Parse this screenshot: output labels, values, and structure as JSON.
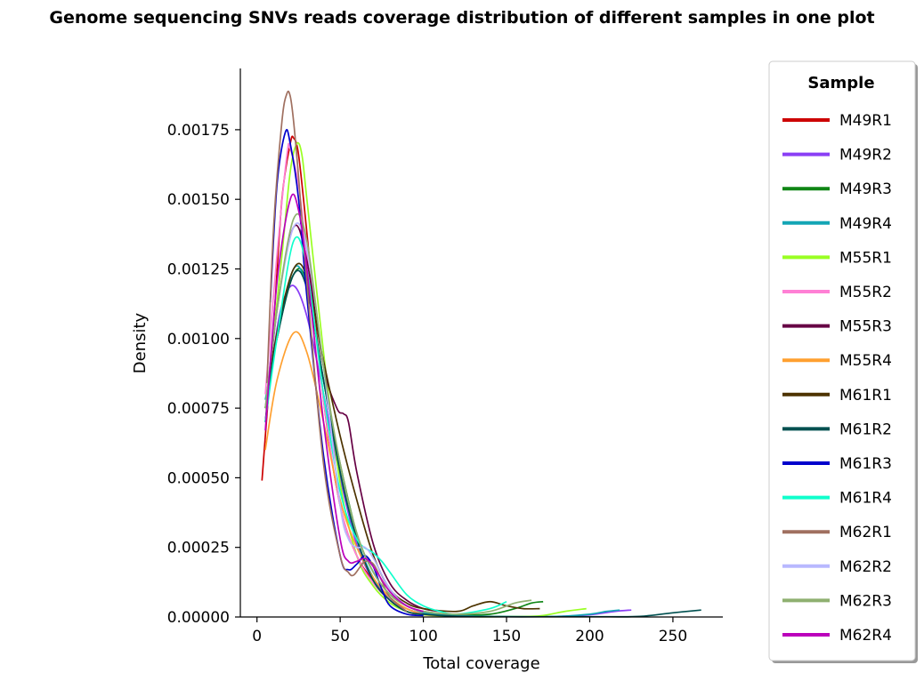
{
  "chart_data": {
    "type": "line",
    "title": "Genome sequencing SNVs reads coverage distribution of different samples in one plot",
    "xlabel": "Total coverage",
    "ylabel": "Density",
    "xlim": [
      -10,
      280
    ],
    "ylim": [
      0,
      0.00197
    ],
    "xticks": [
      0,
      50,
      100,
      150,
      200,
      250
    ],
    "yticks": [
      0.0,
      0.00025,
      0.0005,
      0.00075,
      0.001,
      0.00125,
      0.0015,
      0.00175
    ],
    "xtick_labels": [
      "0",
      "50",
      "100",
      "150",
      "200",
      "250"
    ],
    "ytick_labels": [
      "0.00000",
      "0.00025",
      "0.00050",
      "0.00075",
      "0.00100",
      "0.00125",
      "0.00150",
      "0.00175"
    ],
    "grid": false,
    "legend": {
      "title": "Sample",
      "placement": "outside-right"
    },
    "series": [
      {
        "name": "M49R1",
        "color": "#cc0000",
        "x": [
          3,
          10,
          15,
          20,
          22,
          25,
          30,
          40,
          50,
          60,
          70,
          80,
          90,
          100
        ],
        "y": [
          0.00049,
          0.00105,
          0.0015,
          0.0017,
          0.00172,
          0.00166,
          0.00138,
          0.00078,
          0.0004,
          0.00022,
          0.00013,
          6e-05,
          2e-05,
          5e-06
        ]
      },
      {
        "name": "M49R2",
        "color": "#8a3ff5",
        "x": [
          5,
          10,
          15,
          22,
          30,
          40,
          50,
          60,
          70,
          80,
          90,
          100,
          120,
          140,
          160,
          180,
          200,
          215,
          225
        ],
        "y": [
          0.0007,
          0.00095,
          0.00112,
          0.00119,
          0.00108,
          0.0008,
          0.0005,
          0.00026,
          0.00013,
          6e-05,
          3e-05,
          1e-05,
          5e-06,
          2e-06,
          1e-06,
          2e-06,
          8e-06,
          2e-05,
          2.5e-05
        ]
      },
      {
        "name": "M49R3",
        "color": "#0f8515",
        "x": [
          5,
          12,
          22,
          30,
          40,
          50,
          60,
          70,
          80,
          90,
          100,
          120,
          140,
          155,
          165,
          172
        ],
        "y": [
          0.00075,
          0.001,
          0.00123,
          0.0012,
          0.00085,
          0.00055,
          0.0003,
          0.00016,
          8e-05,
          4e-05,
          2e-05,
          8e-06,
          1e-05,
          3e-05,
          5e-05,
          5.5e-05
        ]
      },
      {
        "name": "M49R4",
        "color": "#13a5b5",
        "x": [
          5,
          12,
          22,
          30,
          40,
          50,
          60,
          70,
          80,
          90,
          100,
          120,
          150,
          180,
          200,
          210,
          218
        ],
        "y": [
          0.00078,
          0.001,
          0.00125,
          0.00118,
          0.00085,
          0.00052,
          0.00028,
          0.00014,
          7e-05,
          3e-05,
          1.5e-05,
          5e-06,
          2e-06,
          2e-06,
          1e-05,
          2e-05,
          2.5e-05
        ]
      },
      {
        "name": "M55R1",
        "color": "#99ff22",
        "x": [
          8,
          15,
          20,
          24,
          27,
          30,
          40,
          50,
          60,
          70,
          80,
          90,
          100,
          120,
          150,
          170,
          185,
          198
        ],
        "y": [
          0.0009,
          0.0013,
          0.0016,
          0.0017,
          0.00166,
          0.0015,
          0.00095,
          0.00048,
          0.00022,
          0.00011,
          5e-05,
          2e-05,
          8e-06,
          2e-06,
          1e-06,
          4e-06,
          2e-05,
          3e-05
        ]
      },
      {
        "name": "M55R2",
        "color": "#ff80d5",
        "x": [
          5,
          12,
          18,
          20,
          25,
          30,
          40,
          50,
          60,
          70,
          80,
          90,
          100
        ],
        "y": [
          0.0008,
          0.0013,
          0.00166,
          0.00168,
          0.00155,
          0.0013,
          0.00078,
          0.0004,
          0.00022,
          0.00012,
          6e-05,
          3e-05,
          1e-05
        ]
      },
      {
        "name": "M55R3",
        "color": "#660044",
        "x": [
          5,
          12,
          22,
          30,
          40,
          48,
          52,
          55,
          60,
          70,
          80,
          90,
          100,
          110
        ],
        "y": [
          0.0007,
          0.0011,
          0.0014,
          0.00128,
          0.0009,
          0.00075,
          0.00073,
          0.0007,
          0.00052,
          0.00026,
          0.00012,
          6e-05,
          3e-05,
          2e-05
        ]
      },
      {
        "name": "M55R4",
        "color": "#ffa030",
        "x": [
          5,
          12,
          22,
          30,
          40,
          50,
          60,
          70,
          80,
          90,
          100,
          110
        ],
        "y": [
          0.0006,
          0.00085,
          0.00102,
          0.00095,
          0.0007,
          0.00042,
          0.00025,
          0.00014,
          7e-05,
          3e-05,
          1e-05,
          5e-06
        ]
      },
      {
        "name": "M61R1",
        "color": "#4d3300",
        "x": [
          5,
          12,
          22,
          30,
          40,
          50,
          60,
          70,
          80,
          90,
          100,
          120,
          130,
          140,
          150,
          160,
          170
        ],
        "y": [
          0.00075,
          0.00102,
          0.00125,
          0.00122,
          0.00092,
          0.00065,
          0.00042,
          0.00022,
          0.0001,
          5e-05,
          3e-05,
          2e-05,
          4e-05,
          5.5e-05,
          4e-05,
          3e-05,
          3e-05
        ]
      },
      {
        "name": "M61R2",
        "color": "#005050",
        "x": [
          5,
          12,
          22,
          30,
          40,
          50,
          60,
          70,
          80,
          90,
          100,
          120,
          150,
          180,
          210,
          230,
          250,
          267
        ],
        "y": [
          0.00075,
          0.001,
          0.00123,
          0.00118,
          0.00085,
          0.00052,
          0.00028,
          0.00013,
          6e-05,
          2e-05,
          1e-05,
          3e-06,
          1e-06,
          1e-06,
          1e-06,
          2e-06,
          1.5e-05,
          2.5e-05
        ]
      },
      {
        "name": "M61R3",
        "color": "#0000cc",
        "x": [
          8,
          12,
          17,
          20,
          25,
          30,
          40,
          50,
          55,
          60,
          65,
          70,
          75,
          80,
          90,
          100
        ],
        "y": [
          0.00113,
          0.00155,
          0.00174,
          0.0017,
          0.0015,
          0.00115,
          0.00058,
          0.00022,
          0.00017,
          0.00019,
          0.00022,
          0.00018,
          0.0001,
          4e-05,
          1e-05,
          5e-06
        ]
      },
      {
        "name": "M61R4",
        "color": "#10ffcc",
        "x": [
          5,
          12,
          22,
          30,
          40,
          50,
          60,
          70,
          75,
          80,
          90,
          100,
          110,
          120,
          140,
          150
        ],
        "y": [
          0.0007,
          0.001,
          0.00135,
          0.00125,
          0.0008,
          0.00045,
          0.00028,
          0.00023,
          0.0002,
          0.00016,
          8e-05,
          4e-05,
          2e-05,
          1e-05,
          3e-05,
          5.5e-05
        ]
      },
      {
        "name": "M62R1",
        "color": "#a07060",
        "x": [
          6,
          10,
          15,
          18,
          20,
          22,
          25,
          30,
          40,
          50,
          55,
          58,
          62,
          65,
          70,
          75,
          80,
          90
        ],
        "y": [
          0.00084,
          0.0014,
          0.00178,
          0.00188,
          0.00187,
          0.00178,
          0.00158,
          0.0012,
          0.00055,
          0.00022,
          0.00016,
          0.00015,
          0.00018,
          0.0002,
          0.00019,
          0.00013,
          7e-05,
          2e-05
        ]
      },
      {
        "name": "M62R2",
        "color": "#b8b8ff",
        "x": [
          5,
          12,
          22,
          30,
          40,
          50,
          55,
          60,
          65,
          70,
          80,
          90,
          100
        ],
        "y": [
          0.00075,
          0.0011,
          0.0014,
          0.00132,
          0.0009,
          0.0004,
          0.00028,
          0.00025,
          0.00025,
          0.00021,
          0.0001,
          4e-05,
          2e-05
        ]
      },
      {
        "name": "M62R3",
        "color": "#8fb070",
        "x": [
          5,
          12,
          22,
          30,
          40,
          50,
          60,
          70,
          80,
          90,
          100,
          120,
          140,
          155,
          165
        ],
        "y": [
          0.00075,
          0.0011,
          0.00143,
          0.00135,
          0.0009,
          0.00055,
          0.0003,
          0.00016,
          8e-05,
          4e-05,
          2e-05,
          1e-05,
          2e-05,
          5e-05,
          6e-05
        ]
      },
      {
        "name": "M62R4",
        "color": "#bb00bb",
        "x": [
          5,
          12,
          20,
          25,
          30,
          40,
          50,
          55,
          60,
          65,
          70,
          80,
          90,
          100
        ],
        "y": [
          0.00067,
          0.0012,
          0.0015,
          0.00146,
          0.00125,
          0.0007,
          0.00028,
          0.0002,
          0.0002,
          0.00021,
          0.00018,
          9e-05,
          4e-05,
          2e-05
        ]
      }
    ]
  }
}
